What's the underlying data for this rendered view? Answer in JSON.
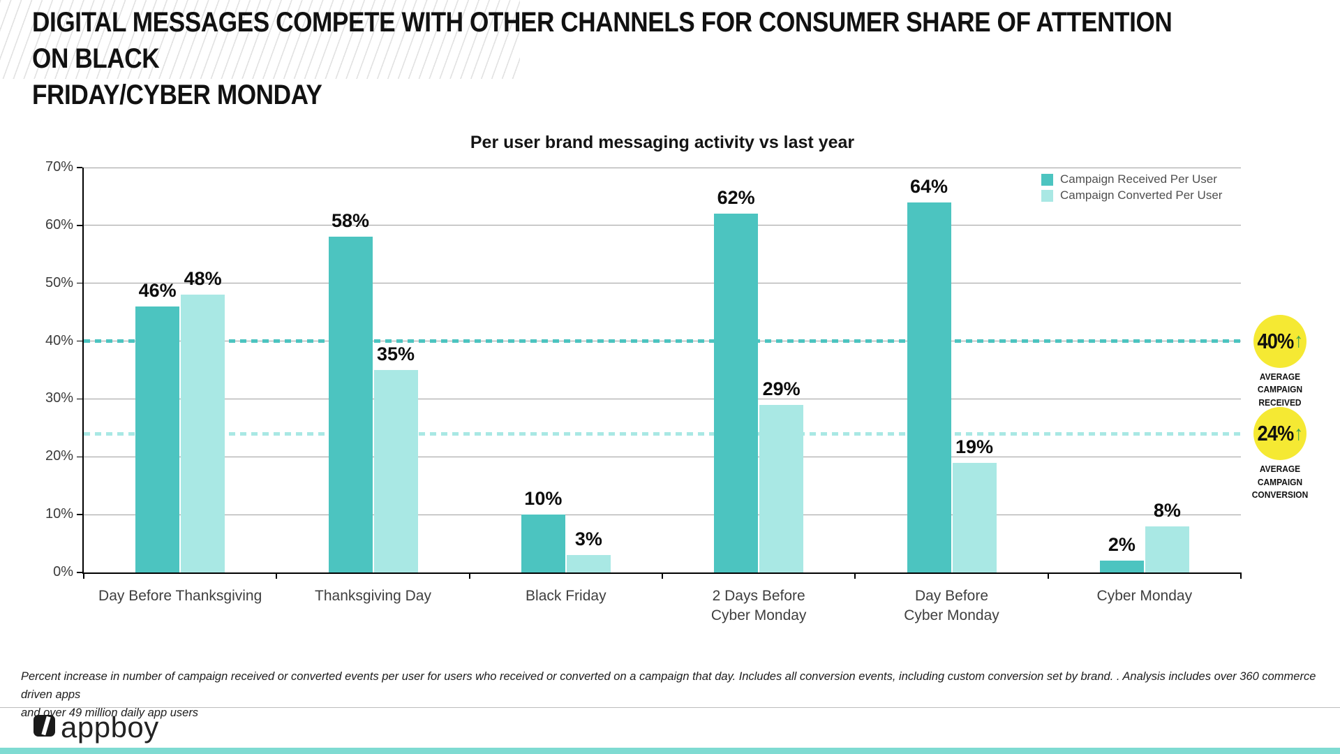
{
  "header": {
    "title_line1": "DIGITAL MESSAGES COMPETE WITH OTHER CHANNELS FOR CONSUMER SHARE OF ATTENTION ON BLACK",
    "title_line2": "FRIDAY/CYBER MONDAY"
  },
  "chart_data": {
    "type": "bar",
    "title": "Per user brand messaging activity vs last year",
    "categories": [
      "Day Before Thanksgiving",
      "Thanksgiving Day",
      "Black Friday",
      "2 Days Before\nCyber Monday",
      "Day Before\nCyber Monday",
      "Cyber Monday"
    ],
    "series": [
      {
        "name": "Campaign Received Per User",
        "color": "#4cc4c0",
        "values": [
          46,
          58,
          10,
          62,
          64,
          2
        ]
      },
      {
        "name": "Campaign Converted Per User",
        "color": "#a9e8e4",
        "values": [
          48,
          35,
          3,
          29,
          19,
          8
        ]
      }
    ],
    "value_label_suffix": "%",
    "yticks": [
      "0%",
      "10%",
      "20%",
      "30%",
      "40%",
      "50%",
      "60%",
      "70%"
    ],
    "ylim": [
      0,
      70
    ],
    "grid": true,
    "legend_position": "top-right",
    "reference_lines": [
      {
        "value": 40,
        "color": "#4cc4c0",
        "style": "dashed"
      },
      {
        "value": 24,
        "color": "#a9e8e4",
        "style": "dashed"
      }
    ],
    "annotations": [
      {
        "value": 40,
        "label": "40%",
        "direction": "up",
        "caption": "AVERAGE\nCAMPAIGN\nRECEIVED"
      },
      {
        "value": 24,
        "label": "24%",
        "direction": "up",
        "caption": "AVERAGE\nCAMPAIGN\nCONVERSION"
      }
    ]
  },
  "footnote": "Percent increase in number of campaign received or converted events per user for users who received or converted on a campaign that day.  Includes all conversion events, including custom conversion set by brand. .  Analysis includes over 360 commerce driven apps\nand over 49 million daily app users",
  "footer": {
    "brand": "appboy"
  },
  "colors": {
    "received_bar": "#4cc4c0",
    "converted_bar": "#a9e8e4",
    "badge_yellow": "#f5e933",
    "badge_arrow_green": "#3fa34d",
    "bottom_bar_teal": "#7fdbd2",
    "gridline_gray": "#9e9e9e"
  }
}
